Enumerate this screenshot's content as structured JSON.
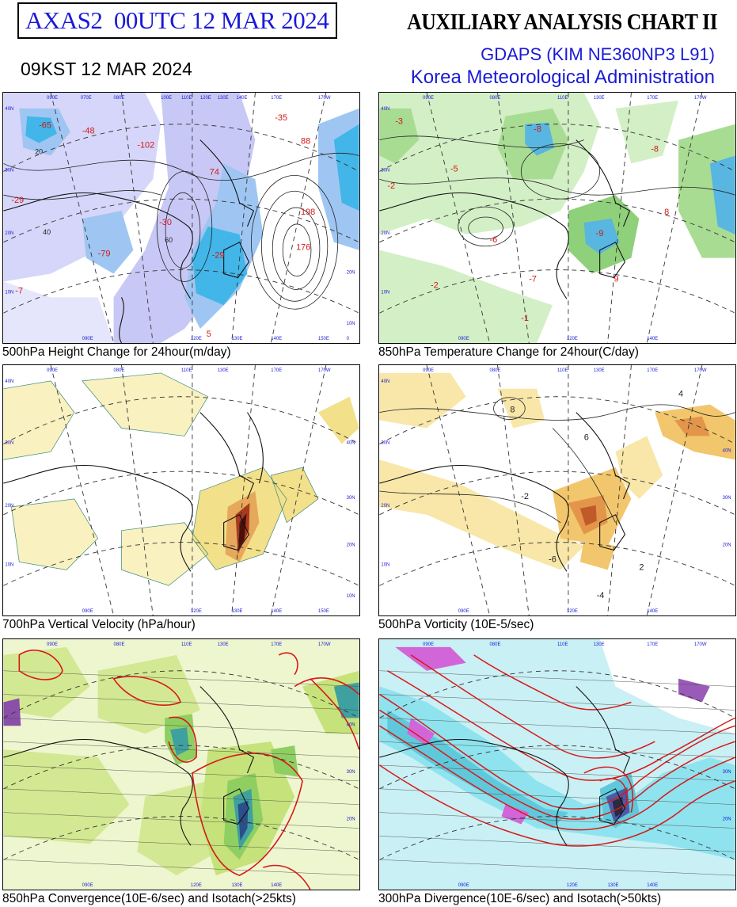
{
  "header": {
    "run_label": "AXAS2  00UTC 12 MAR 2024",
    "chart_title": "AUXILIARY ANALYSIS CHART II",
    "local_time": "09KST 12 MAR 2024",
    "model": "GDAPS (KIM NE360NP3 L91)",
    "agency": "Korea Meteorological Administration"
  },
  "panels": [
    {
      "caption": "500hPa Height Change for 24hour(m/day)",
      "values": [
        "-79",
        "-65",
        "-102",
        "-29",
        "-29",
        "-7",
        "74",
        "198",
        "176",
        "88",
        "-48",
        "-30",
        "-35",
        "5",
        "20",
        "40",
        "60"
      ]
    },
    {
      "caption": "850hPa Temperature Change for 24hour(C/day)",
      "values": [
        "-5",
        "-6",
        "-8",
        "-9",
        "-7",
        "-8",
        "-2",
        "-3",
        "-1",
        "-2",
        "9",
        "8"
      ]
    },
    {
      "caption": "700hPa Vertical Velocity (hPa/hour)",
      "values": []
    },
    {
      "caption": "500hPa Vorticity (10E-5/sec)",
      "values": [
        "8",
        "6",
        "4",
        "2",
        "-2",
        "-4",
        "-6"
      ]
    },
    {
      "caption": "850hPa Convergence(10E-6/sec) and Isotach(>25kts)",
      "values": []
    },
    {
      "caption": "300hPa Divergence(10E-6/sec) and Isotach(>50kts)",
      "values": []
    }
  ],
  "grid_labels": {
    "lon": [
      "090E",
      "060E",
      "070E",
      "080E",
      "100E",
      "110E",
      "120E",
      "130E",
      "140E",
      "150E",
      "160E",
      "170E",
      "180E",
      "170W"
    ],
    "lat": [
      "40N",
      "30N",
      "20N",
      "10N",
      "10S",
      "0"
    ]
  },
  "colors": {
    "title_blue": "#1a1ad6",
    "neg_height": "#9a9af0",
    "temp_green": "#8fd07a",
    "vv_yellow": "#f3e08a",
    "vort_orange": "#f0b050",
    "conv_green": "#c6e27a",
    "div_cyan": "#8ee3ee",
    "isotach_red": "#d81818"
  }
}
